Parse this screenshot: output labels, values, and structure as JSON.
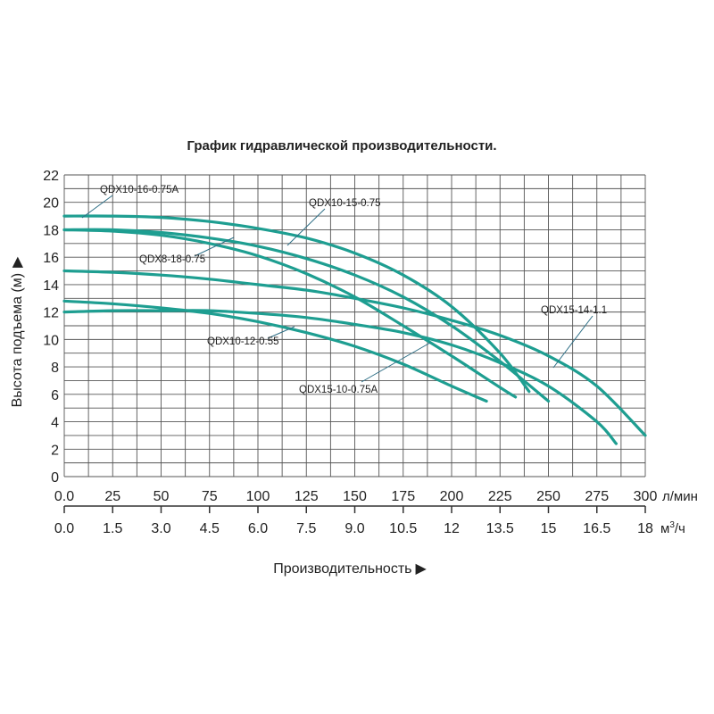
{
  "chart_data": {
    "type": "line",
    "title": "График гидравлической производительности.",
    "xlabel": "Производительность",
    "ylabel": "Высота подъема (м)",
    "x_unit_primary": "л/мин",
    "x_unit_secondary": "м³/ч",
    "xlim": [
      0,
      300
    ],
    "ylim": [
      0,
      22
    ],
    "x_ticks": [
      "0.0",
      "25",
      "50",
      "75",
      "100",
      "125",
      "150",
      "175",
      "200",
      "225",
      "250",
      "275",
      "300"
    ],
    "x_ticks_secondary": [
      "0.0",
      "1.5",
      "3.0",
      "4.5",
      "6.0",
      "7.5",
      "9.0",
      "10.5",
      "12",
      "13.5",
      "15",
      "16.5",
      "18"
    ],
    "y_ticks": [
      "0",
      "2",
      "4",
      "6",
      "8",
      "10",
      "12",
      "14",
      "16",
      "18",
      "20",
      "22"
    ],
    "grid": true,
    "curve_color": "#1e9e91",
    "series": [
      {
        "name": "QDX10-16-0.75A",
        "x": [
          0,
          25,
          50,
          75,
          100,
          125,
          150,
          175,
          200,
          225,
          240
        ],
        "y": [
          19.0,
          19.0,
          18.9,
          18.6,
          18.1,
          17.4,
          16.3,
          14.7,
          12.4,
          9.0,
          6.2
        ]
      },
      {
        "name": "QDX10-15-0.75",
        "x": [
          0,
          25,
          50,
          75,
          100,
          125,
          150,
          175,
          200,
          225,
          250
        ],
        "y": [
          18.0,
          18.0,
          17.8,
          17.4,
          16.8,
          15.9,
          14.7,
          13.1,
          11.0,
          8.4,
          5.5
        ]
      },
      {
        "name": "QDX8-18-0.75",
        "x": [
          0,
          25,
          50,
          75,
          100,
          125,
          150,
          175,
          200,
          225,
          233
        ],
        "y": [
          18.0,
          17.9,
          17.6,
          17.0,
          16.1,
          14.8,
          13.1,
          11.0,
          8.8,
          6.5,
          5.8
        ]
      },
      {
        "name": "QDX15-14-1.1",
        "x": [
          0,
          25,
          50,
          75,
          100,
          125,
          150,
          175,
          200,
          225,
          250,
          275,
          300
        ],
        "y": [
          15.0,
          14.9,
          14.7,
          14.4,
          14.0,
          13.6,
          13.0,
          12.3,
          11.4,
          10.3,
          8.8,
          6.6,
          3.0
        ]
      },
      {
        "name": "QDX10-12-0.55",
        "x": [
          0,
          25,
          50,
          75,
          100,
          125,
          150,
          175,
          200,
          218
        ],
        "y": [
          12.8,
          12.6,
          12.3,
          11.9,
          11.3,
          10.5,
          9.5,
          8.2,
          6.6,
          5.5
        ]
      },
      {
        "name": "QDX15-10-0.75A",
        "x": [
          0,
          25,
          50,
          75,
          100,
          125,
          150,
          175,
          200,
          225,
          250,
          275,
          285
        ],
        "y": [
          12.0,
          12.1,
          12.1,
          12.1,
          11.9,
          11.6,
          11.1,
          10.5,
          9.6,
          8.3,
          6.6,
          4.0,
          2.4
        ]
      }
    ]
  }
}
